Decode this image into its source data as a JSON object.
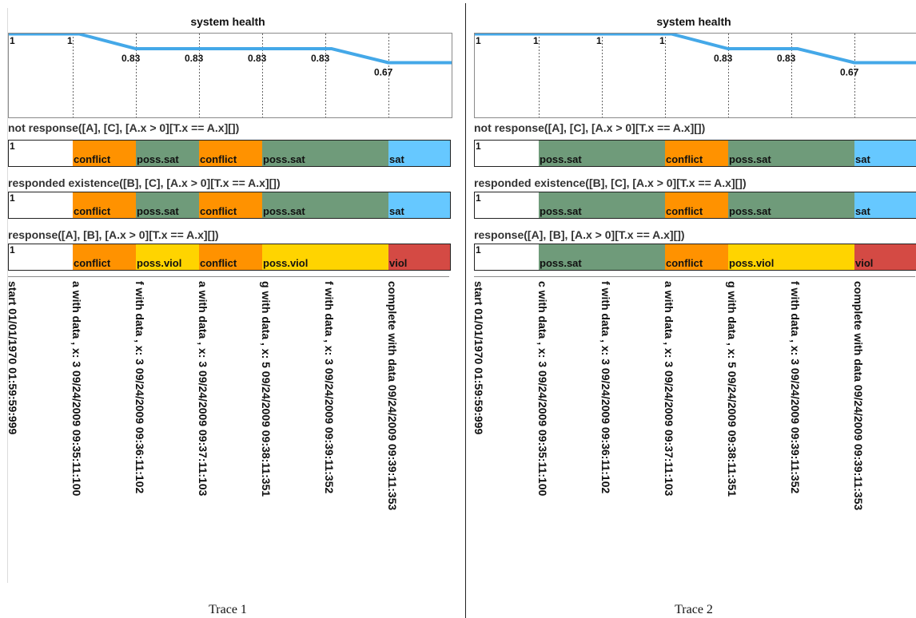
{
  "colors": {
    "conflict": "#ff9200",
    "poss.sat": "#6f9b7a",
    "sat": "#66c8ff",
    "poss.viol": "#ffd400",
    "viol": "#d44a44",
    "health_line": "#44a8e8",
    "tick_line": "#666666"
  },
  "traces": [
    {
      "caption": "Trace 1",
      "health": {
        "title": "system health",
        "values": [
          1,
          1,
          0.83,
          0.83,
          0.83,
          0.83,
          0.67
        ],
        "labels": [
          "1",
          "1",
          "0.83",
          "0.83",
          "0.83",
          "0.83",
          "0.67"
        ]
      },
      "constraints": [
        {
          "title": "not response([A], [C], [A.x > 0][T.x == A.x][])",
          "start_value": "1",
          "segments": [
            {
              "state": "",
              "label": ""
            },
            {
              "state": "conflict",
              "label": "conflict"
            },
            {
              "state": "poss.sat",
              "label": "poss.sat"
            },
            {
              "state": "conflict",
              "label": "conflict"
            },
            {
              "state": "poss.sat",
              "label": "poss.sat"
            },
            {
              "state": "poss.sat",
              "label": ""
            },
            {
              "state": "sat",
              "label": "sat"
            }
          ]
        },
        {
          "title": "responded existence([B], [C], [A.x > 0][T.x == A.x][])",
          "start_value": "1",
          "segments": [
            {
              "state": "",
              "label": ""
            },
            {
              "state": "conflict",
              "label": "conflict"
            },
            {
              "state": "poss.sat",
              "label": "poss.sat"
            },
            {
              "state": "conflict",
              "label": "conflict"
            },
            {
              "state": "poss.sat",
              "label": "poss.sat"
            },
            {
              "state": "poss.sat",
              "label": ""
            },
            {
              "state": "sat",
              "label": "sat"
            }
          ]
        },
        {
          "title": "response([A], [B], [A.x > 0][T.x == A.x][])",
          "start_value": "1",
          "segments": [
            {
              "state": "",
              "label": ""
            },
            {
              "state": "conflict",
              "label": "conflict"
            },
            {
              "state": "poss.viol",
              "label": "poss.viol"
            },
            {
              "state": "conflict",
              "label": "conflict"
            },
            {
              "state": "poss.viol",
              "label": "poss.viol"
            },
            {
              "state": "poss.viol",
              "label": ""
            },
            {
              "state": "viol",
              "label": "viol"
            }
          ]
        }
      ],
      "events": [
        "start 01/01/1970 01:59:59:999",
        "a with data , x: 3 09/24/2009 09:35:11:100",
        "f with data , x: 3 09/24/2009 09:36:11:102",
        "a with data , x: 3 09/24/2009 09:37:11:103",
        "g with data , x: 5 09/24/2009 09:38:11:351",
        "f with data , x: 3 09/24/2009 09:39:11:352",
        "complete with data  09/24/2009 09:39:11:353"
      ]
    },
    {
      "caption": "Trace 2",
      "health": {
        "title": "system health",
        "values": [
          1,
          1,
          1,
          1,
          0.83,
          0.83,
          0.67
        ],
        "labels": [
          "1",
          "1",
          "1",
          "1",
          "0.83",
          "0.83",
          "0.67"
        ]
      },
      "constraints": [
        {
          "title": "not response([A], [C], [A.x > 0][T.x == A.x][])",
          "start_value": "1",
          "segments": [
            {
              "state": "",
              "label": ""
            },
            {
              "state": "poss.sat",
              "label": "poss.sat"
            },
            {
              "state": "poss.sat",
              "label": ""
            },
            {
              "state": "conflict",
              "label": "conflict"
            },
            {
              "state": "poss.sat",
              "label": "poss.sat"
            },
            {
              "state": "poss.sat",
              "label": ""
            },
            {
              "state": "sat",
              "label": "sat"
            }
          ]
        },
        {
          "title": "responded existence([B], [C], [A.x > 0][T.x == A.x][])",
          "start_value": "1",
          "segments": [
            {
              "state": "",
              "label": ""
            },
            {
              "state": "poss.sat",
              "label": "poss.sat"
            },
            {
              "state": "poss.sat",
              "label": ""
            },
            {
              "state": "conflict",
              "label": "conflict"
            },
            {
              "state": "poss.sat",
              "label": "poss.sat"
            },
            {
              "state": "poss.sat",
              "label": ""
            },
            {
              "state": "sat",
              "label": "sat"
            }
          ]
        },
        {
          "title": "response([A], [B], [A.x > 0][T.x == A.x][])",
          "start_value": "1",
          "segments": [
            {
              "state": "",
              "label": ""
            },
            {
              "state": "poss.sat",
              "label": "poss.sat"
            },
            {
              "state": "poss.sat",
              "label": ""
            },
            {
              "state": "conflict",
              "label": "conflict"
            },
            {
              "state": "poss.viol",
              "label": "poss.viol"
            },
            {
              "state": "poss.viol",
              "label": ""
            },
            {
              "state": "viol",
              "label": "viol"
            }
          ]
        }
      ],
      "events": [
        "start 01/01/1970 01:59:59:999",
        "c with data , x: 3 09/24/2009 09:35:11:100",
        "f with data , x: 3 09/24/2009 09:36:11:102",
        "a with data , x: 3 09/24/2009 09:37:11:103",
        "g with data , x: 5 09/24/2009 09:38:11:351",
        "f with data , x: 3 09/24/2009 09:39:11:352",
        "complete with data  09/24/2009 09:39:11:353"
      ]
    }
  ]
}
